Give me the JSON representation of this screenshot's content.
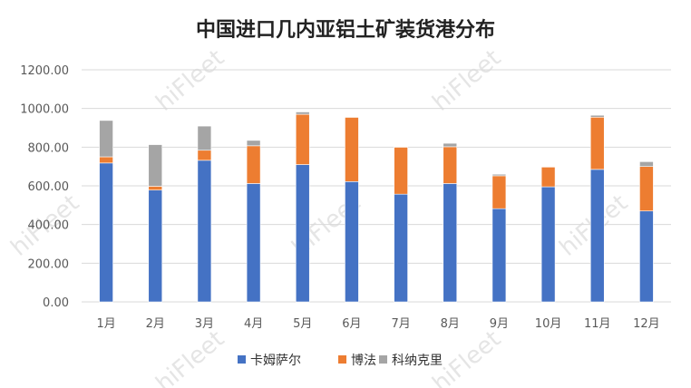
{
  "chart_data": {
    "type": "bar",
    "stacked": true,
    "title": "中国进口几内亚铝土矿装货港分布",
    "xlabel": "",
    "ylabel": "",
    "categories": [
      "1月",
      "2月",
      "3月",
      "4月",
      "5月",
      "6月",
      "7月",
      "8月",
      "9月",
      "10月",
      "11月",
      "12月"
    ],
    "ylim": [
      0,
      1200
    ],
    "yticks": [
      "0.00",
      "200.00",
      "400.00",
      "600.00",
      "800.00",
      "1000.00",
      "1200.00"
    ],
    "grid": true,
    "legend_position": "bottom",
    "series": [
      {
        "name": "卡姆萨尔",
        "color": "#4472C4",
        "values": [
          718,
          578,
          732,
          612,
          710,
          622,
          557,
          612,
          482,
          595,
          685,
          470
        ]
      },
      {
        "name": "博法",
        "color": "#ED7D31",
        "values": [
          32,
          20,
          52,
          195,
          260,
          332,
          243,
          190,
          170,
          102,
          270,
          230
        ]
      },
      {
        "name": "科纳克里",
        "color": "#A5A5A5",
        "values": [
          188,
          215,
          125,
          28,
          12,
          0,
          3,
          18,
          8,
          0,
          10,
          25
        ]
      }
    ],
    "watermark": "hiFleet"
  }
}
